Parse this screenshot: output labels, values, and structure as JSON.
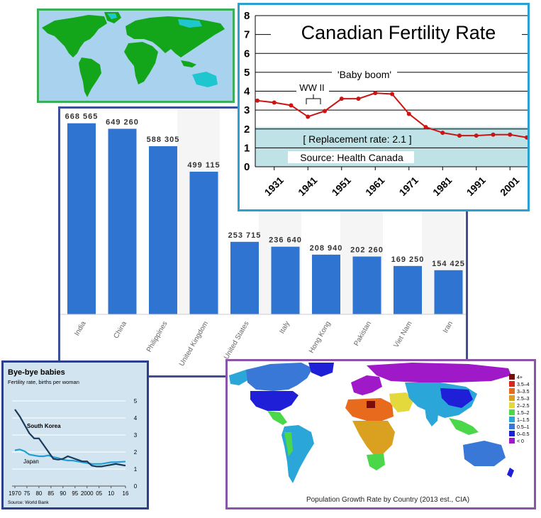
{
  "top_map": {
    "icon": "world-map-icon"
  },
  "immigration_chart": {
    "categories": [
      "India",
      "China",
      "Philippines",
      "United Kingdom",
      "United States",
      "Italy",
      "Hong Kong",
      "Pakistan",
      "Viet Nam",
      "Iran"
    ],
    "value_labels": [
      "668 565",
      "649 260",
      "588 305",
      "499 115",
      "253 715",
      "236 640",
      "208 940",
      "202 260",
      "169 250",
      "154 425"
    ]
  },
  "growth_map": {
    "caption": "Population Growth Rate by Country (2013 est., CIA)",
    "legend": [
      {
        "label": "4+",
        "color": "#7a0c0c"
      },
      {
        "label": "3.5–4",
        "color": "#d8281c"
      },
      {
        "label": "3–3.5",
        "color": "#e86a1c"
      },
      {
        "label": "2.5–3",
        "color": "#d9a11f"
      },
      {
        "label": "2–2.5",
        "color": "#e3d83c"
      },
      {
        "label": "1.5–2",
        "color": "#4ad84a"
      },
      {
        "label": "1–1.5",
        "color": "#2aa6d8"
      },
      {
        "label": "0.5–1",
        "color": "#3a78d8"
      },
      {
        "label": "0–0.5",
        "color": "#1f1fd8"
      },
      {
        "label": "< 0",
        "color": "#a019c8"
      }
    ]
  },
  "chart_data": [
    {
      "type": "bar",
      "title": "",
      "categories": [
        "India",
        "China",
        "Philippines",
        "United Kingdom",
        "United States",
        "Italy",
        "Hong Kong",
        "Pakistan",
        "Viet Nam",
        "Iran"
      ],
      "values": [
        668565,
        649260,
        588305,
        499115,
        253715,
        236640,
        208940,
        202260,
        169250,
        154425
      ],
      "ylim": [
        0,
        720000
      ],
      "bar_color": "#2f74d0"
    },
    {
      "type": "line",
      "title": "Canadian Fertility Rate",
      "x": [
        1926,
        1931,
        1936,
        1941,
        1946,
        1951,
        1956,
        1961,
        1966,
        1971,
        1976,
        1981,
        1986,
        1991,
        1996,
        2001,
        2006
      ],
      "y": [
        3.5,
        3.4,
        3.25,
        2.65,
        2.95,
        3.6,
        3.6,
        3.9,
        3.85,
        2.8,
        2.1,
        1.8,
        1.65,
        1.65,
        1.7,
        1.7,
        1.55
      ],
      "xticks": [
        "1931",
        "1941",
        "1951",
        "1961",
        "1971",
        "1981",
        "1991",
        "2001"
      ],
      "yticks": [
        0,
        1,
        2,
        3,
        4,
        5,
        6,
        7,
        8
      ],
      "ylim": [
        0,
        8
      ],
      "annotations": [
        "'Baby boom'",
        "WW II",
        "[ Replacement rate: 2.1 ]",
        "Source: Health Canada"
      ],
      "band": [
        0,
        2.1
      ],
      "line_color": "#cc1414"
    },
    {
      "type": "line",
      "title": "Bye-bye babies",
      "subtitle": "Fertility rate, births per woman",
      "source": "Source: World Bank",
      "x": [
        1970,
        1972,
        1974,
        1976,
        1978,
        1980,
        1982,
        1984,
        1986,
        1988,
        1990,
        1992,
        1994,
        1996,
        1998,
        2000,
        2002,
        2004,
        2006,
        2008,
        2010,
        2012,
        2014,
        2016
      ],
      "xtick_labels": [
        "1970",
        "75",
        "80",
        "85",
        "90",
        "95",
        "2000",
        "05",
        "10",
        "16"
      ],
      "xtick_values": [
        1970,
        1975,
        1980,
        1985,
        1990,
        1995,
        2000,
        2005,
        2010,
        2016
      ],
      "yticks": [
        0,
        1,
        2,
        3,
        4,
        5
      ],
      "ylim": [
        0,
        5
      ],
      "series": [
        {
          "name": "South Korea",
          "color": "#1a3a5c",
          "values": [
            4.5,
            4.1,
            3.6,
            3.1,
            2.8,
            2.8,
            2.4,
            2.0,
            1.6,
            1.55,
            1.6,
            1.75,
            1.65,
            1.55,
            1.45,
            1.45,
            1.2,
            1.15,
            1.15,
            1.2,
            1.25,
            1.3,
            1.25,
            1.2
          ]
        },
        {
          "name": "Japan",
          "color": "#1e9fd8",
          "values": [
            2.1,
            2.15,
            2.05,
            1.85,
            1.8,
            1.75,
            1.75,
            1.8,
            1.7,
            1.65,
            1.55,
            1.5,
            1.5,
            1.45,
            1.4,
            1.35,
            1.3,
            1.3,
            1.3,
            1.35,
            1.4,
            1.4,
            1.42,
            1.44
          ]
        }
      ]
    }
  ]
}
